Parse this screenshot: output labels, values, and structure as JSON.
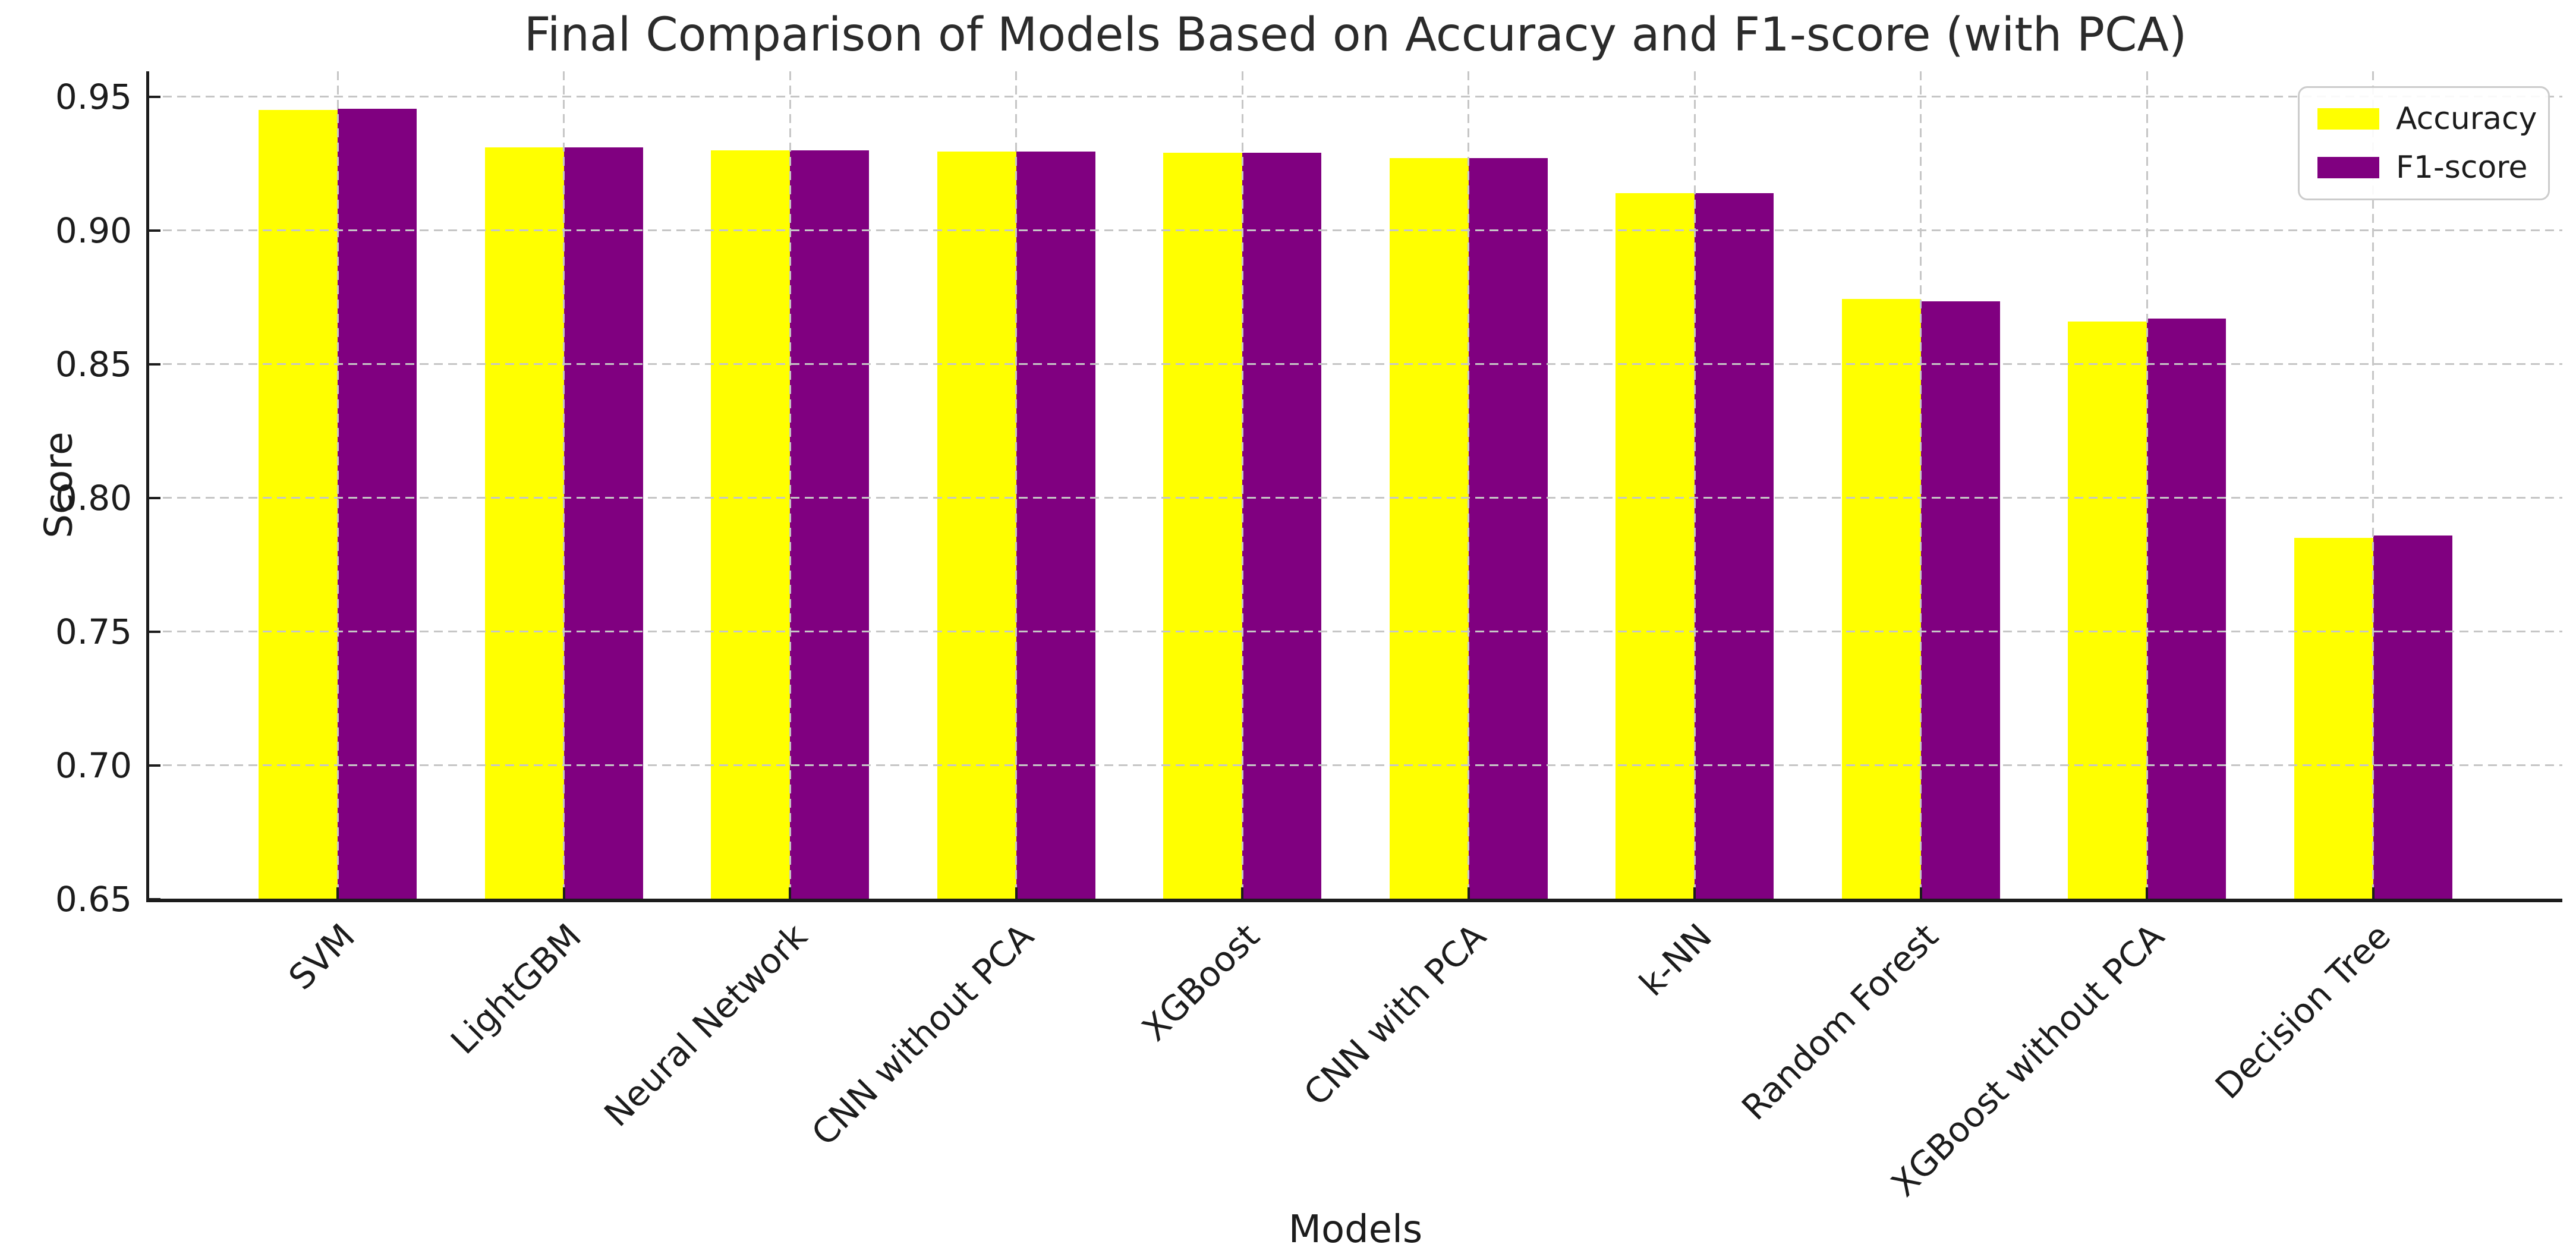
{
  "chart_data": {
    "type": "bar",
    "title": "Final Comparison of Models Based on Accuracy and F1-score (with PCA)",
    "xlabel": "Models",
    "ylabel": "Score",
    "categories": [
      "SVM",
      "LightGBM",
      "Neural Network",
      "CNN without PCA",
      "XGBoost",
      "CNN with PCA",
      "k-NN",
      "Random Forest",
      "XGBoost without PCA",
      "Decision Tree"
    ],
    "series": [
      {
        "name": "Accuracy",
        "color": "#ffff00",
        "values": [
          0.945,
          0.931,
          0.93,
          0.9295,
          0.929,
          0.927,
          0.914,
          0.8745,
          0.866,
          0.785
        ]
      },
      {
        "name": "F1-score",
        "color": "#800080",
        "values": [
          0.9455,
          0.931,
          0.93,
          0.9295,
          0.929,
          0.927,
          0.914,
          0.8735,
          0.867,
          0.786
        ]
      }
    ],
    "ylim": [
      0.65,
      0.9595
    ],
    "yticks": [
      0.65,
      0.7,
      0.75,
      0.8,
      0.85,
      0.9,
      0.95
    ],
    "ytick_label_format": "2dp",
    "x_tick_rotation": 45,
    "bar_width_fraction": 0.35,
    "grid": {
      "axis": "both",
      "linestyle": "dashed",
      "color": "#c6c6c6",
      "above_bars": true
    },
    "legend_position": "upper right",
    "spine_color": "#1c1c1c"
  }
}
